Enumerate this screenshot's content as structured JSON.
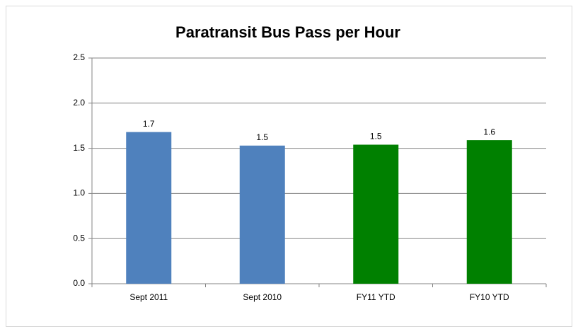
{
  "chart_data": {
    "type": "bar",
    "title": "Paratransit Bus Pass per Hour",
    "categories": [
      "Sept 2011",
      "Sept 2010",
      "FY11 YTD",
      "FY10 YTD"
    ],
    "values": [
      1.68,
      1.53,
      1.54,
      1.59
    ],
    "value_labels": [
      "1.7",
      "1.5",
      "1.5",
      "1.6"
    ],
    "colors": [
      "#4f81bd",
      "#4f81bd",
      "#008000",
      "#008000"
    ],
    "ylim": [
      0,
      2.5
    ],
    "yticks": [
      {
        "value": 0,
        "label": "0.0"
      },
      0.5,
      {
        "value": 1,
        "label": "1.0"
      },
      1.5,
      {
        "value": 2,
        "label": "2.0"
      },
      2.5
    ],
    "grid": true
  }
}
